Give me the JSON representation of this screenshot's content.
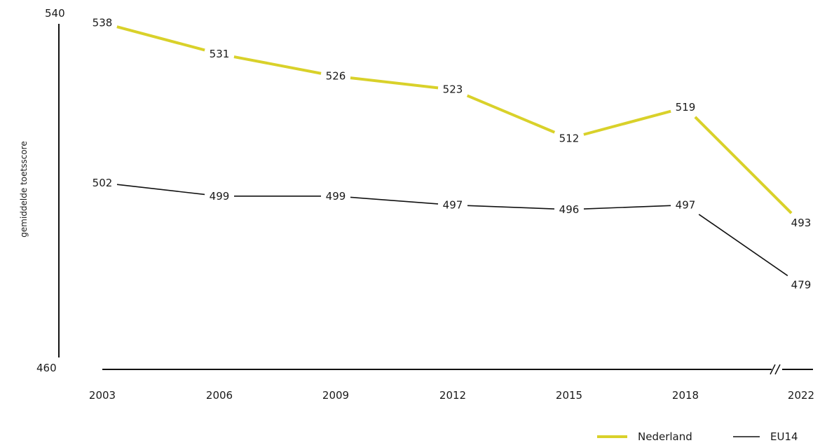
{
  "chart_data": {
    "type": "line",
    "ylabel": "gemiddelde toetsscore",
    "xlabel": "",
    "ylim": [
      460,
      540
    ],
    "y_ticks": [
      "540",
      "460"
    ],
    "categories": [
      "2003",
      "2006",
      "2009",
      "2012",
      "2015",
      "2018",
      "2022"
    ],
    "axis_break_between": [
      "2018",
      "2022"
    ],
    "legend_position": "bottom-right",
    "grid": false,
    "series": [
      {
        "name": "Nederland",
        "color": "#d9d12a",
        "values": [
          538,
          531,
          526,
          523,
          512,
          519,
          493
        ],
        "labels": [
          "538",
          "531",
          "526",
          "523",
          "512",
          "519",
          "493"
        ]
      },
      {
        "name": "EU14",
        "color": "#111111",
        "values": [
          502,
          499,
          499,
          497,
          496,
          497,
          479
        ],
        "labels": [
          "502",
          "499",
          "499",
          "497",
          "496",
          "497",
          "479"
        ]
      }
    ]
  }
}
